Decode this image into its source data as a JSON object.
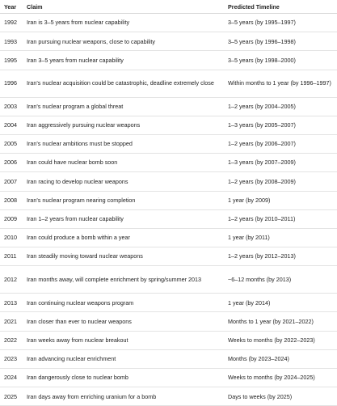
{
  "table": {
    "headers": {
      "year": "Year",
      "claim": "Claim",
      "timeline": "Predicted Timeline"
    },
    "rows": [
      {
        "year": "1992",
        "claim": "Iran is 3–5 years from nuclear capability",
        "timeline": "3–5 years (by 1995–1997)"
      },
      {
        "year": "1993",
        "claim": "Iran pursuing nuclear weapons, close to capability",
        "timeline": "3–5 years (by 1996–1998)"
      },
      {
        "year": "1995",
        "claim": "Iran 3–5 years from nuclear capability",
        "timeline": "3–5 years (by 1998–2000)"
      },
      {
        "year": "1996",
        "claim": "Iran's nuclear acquisition could be catastrophic, deadline extremely close",
        "timeline": "Within months to 1 year (by 1996–1997)"
      },
      {
        "year": "2003",
        "claim": "Iran's nuclear program a global threat",
        "timeline": "1–2 years (by 2004–2005)"
      },
      {
        "year": "2004",
        "claim": "Iran aggressively pursuing nuclear weapons",
        "timeline": "1–3 years (by 2005–2007)"
      },
      {
        "year": "2005",
        "claim": "Iran's nuclear ambitions must be stopped",
        "timeline": "1–2 years (by 2006–2007)"
      },
      {
        "year": "2006",
        "claim": "Iran could have nuclear bomb soon",
        "timeline": "1–3 years (by 2007–2009)"
      },
      {
        "year": "2007",
        "claim": "Iran racing to develop nuclear weapons",
        "timeline": "1–2 years (by 2008–2009)"
      },
      {
        "year": "2008",
        "claim": "Iran's nuclear program nearing completion",
        "timeline": "1 year (by 2009)"
      },
      {
        "year": "2009",
        "claim": "Iran 1–2 years from nuclear capability",
        "timeline": "1–2 years (by 2010–2011)"
      },
      {
        "year": "2010",
        "claim": "Iran could produce a bomb within a year",
        "timeline": "1 year (by 2011)"
      },
      {
        "year": "2011",
        "claim": "Iran steadily moving toward nuclear weapons",
        "timeline": "1–2 years (by 2012–2013)"
      },
      {
        "year": "2012",
        "claim": "Iran months away, will complete enrichment by spring/summer 2013",
        "timeline": "~6–12 months (by 2013)"
      },
      {
        "year": "2013",
        "claim": "Iran continuing nuclear weapons program",
        "timeline": "1 year (by 2014)"
      },
      {
        "year": "2021",
        "claim": "Iran closer than ever to nuclear weapons",
        "timeline": "Months to 1 year (by 2021–2022)"
      },
      {
        "year": "2022",
        "claim": "Iran weeks away from nuclear breakout",
        "timeline": "Weeks to months (by 2022–2023)"
      },
      {
        "year": "2023",
        "claim": "Iran advancing nuclear enrichment",
        "timeline": "Months (by 2023–2024)"
      },
      {
        "year": "2024",
        "claim": "Iran dangerously close to nuclear bomb",
        "timeline": "Weeks to months (by 2024–2025)"
      },
      {
        "year": "2025",
        "claim": "Iran days away from enriching uranium for a bomb",
        "timeline": "Days to weeks (by 2025)"
      }
    ]
  },
  "colors": {
    "text": "#1f1f1f",
    "background": "#ffffff",
    "row_divider": "#e3e3e3"
  }
}
